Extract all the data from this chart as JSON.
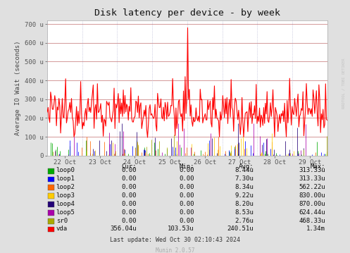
{
  "title": "Disk latency per device - by week",
  "ylabel": "Average IO Wait (seconds)",
  "bg_color": "#e0e0e0",
  "plot_bg_color": "#ffffff",
  "grid_color_h": "#cc8888",
  "grid_color_v": "#aaaacc",
  "ytick_labels": [
    "0",
    "100 u",
    "200 u",
    "300 u",
    "400 u",
    "500 u",
    "600 u",
    "700 u"
  ],
  "ytick_values": [
    0,
    100,
    200,
    300,
    400,
    500,
    600,
    700
  ],
  "xtick_labels": [
    "22 Oct",
    "23 Oct",
    "24 Oct",
    "25 Oct",
    "26 Oct",
    "27 Oct",
    "28 Oct",
    "29 Oct"
  ],
  "ymax": 720,
  "series": {
    "vda": {
      "color": "#ff0000"
    },
    "loop0": {
      "color": "#00aa00"
    },
    "loop1": {
      "color": "#0000ff"
    },
    "loop2": {
      "color": "#ff6600"
    },
    "loop3": {
      "color": "#ffcc00"
    },
    "loop4": {
      "color": "#220077"
    },
    "loop5": {
      "color": "#aa00aa"
    },
    "sr0": {
      "color": "#aaaa00"
    }
  },
  "legend": [
    {
      "label": "loop0",
      "color": "#00aa00"
    },
    {
      "label": "loop1",
      "color": "#0000ff"
    },
    {
      "label": "loop2",
      "color": "#ff6600"
    },
    {
      "label": "loop3",
      "color": "#ffcc00"
    },
    {
      "label": "loop4",
      "color": "#220077"
    },
    {
      "label": "loop5",
      "color": "#aa00aa"
    },
    {
      "label": "sr0",
      "color": "#aaaa00"
    },
    {
      "label": "vda",
      "color": "#ff0000"
    }
  ],
  "table_headers": [
    "Cur:",
    "Min:",
    "Avg:",
    "Max:"
  ],
  "table_data": [
    [
      "loop0",
      "0.00",
      "0.00",
      "8.44u",
      "313.33u"
    ],
    [
      "loop1",
      "0.00",
      "0.00",
      "7.30u",
      "313.33u"
    ],
    [
      "loop2",
      "0.00",
      "0.00",
      "8.34u",
      "562.22u"
    ],
    [
      "loop3",
      "0.00",
      "0.00",
      "9.22u",
      "830.00u"
    ],
    [
      "loop4",
      "0.00",
      "0.00",
      "8.20u",
      "870.00u"
    ],
    [
      "loop5",
      "0.00",
      "0.00",
      "8.53u",
      "624.44u"
    ],
    [
      "sr0",
      "0.00",
      "0.00",
      "2.76u",
      "468.33u"
    ],
    [
      "vda",
      "356.04u",
      "103.53u",
      "240.51u",
      "1.34m"
    ]
  ],
  "last_update": "Last update: Wed Oct 30 02:10:43 2024",
  "munin_version": "Munin 2.0.57",
  "watermark": "RRDTOOL / TOBI OETIKER"
}
